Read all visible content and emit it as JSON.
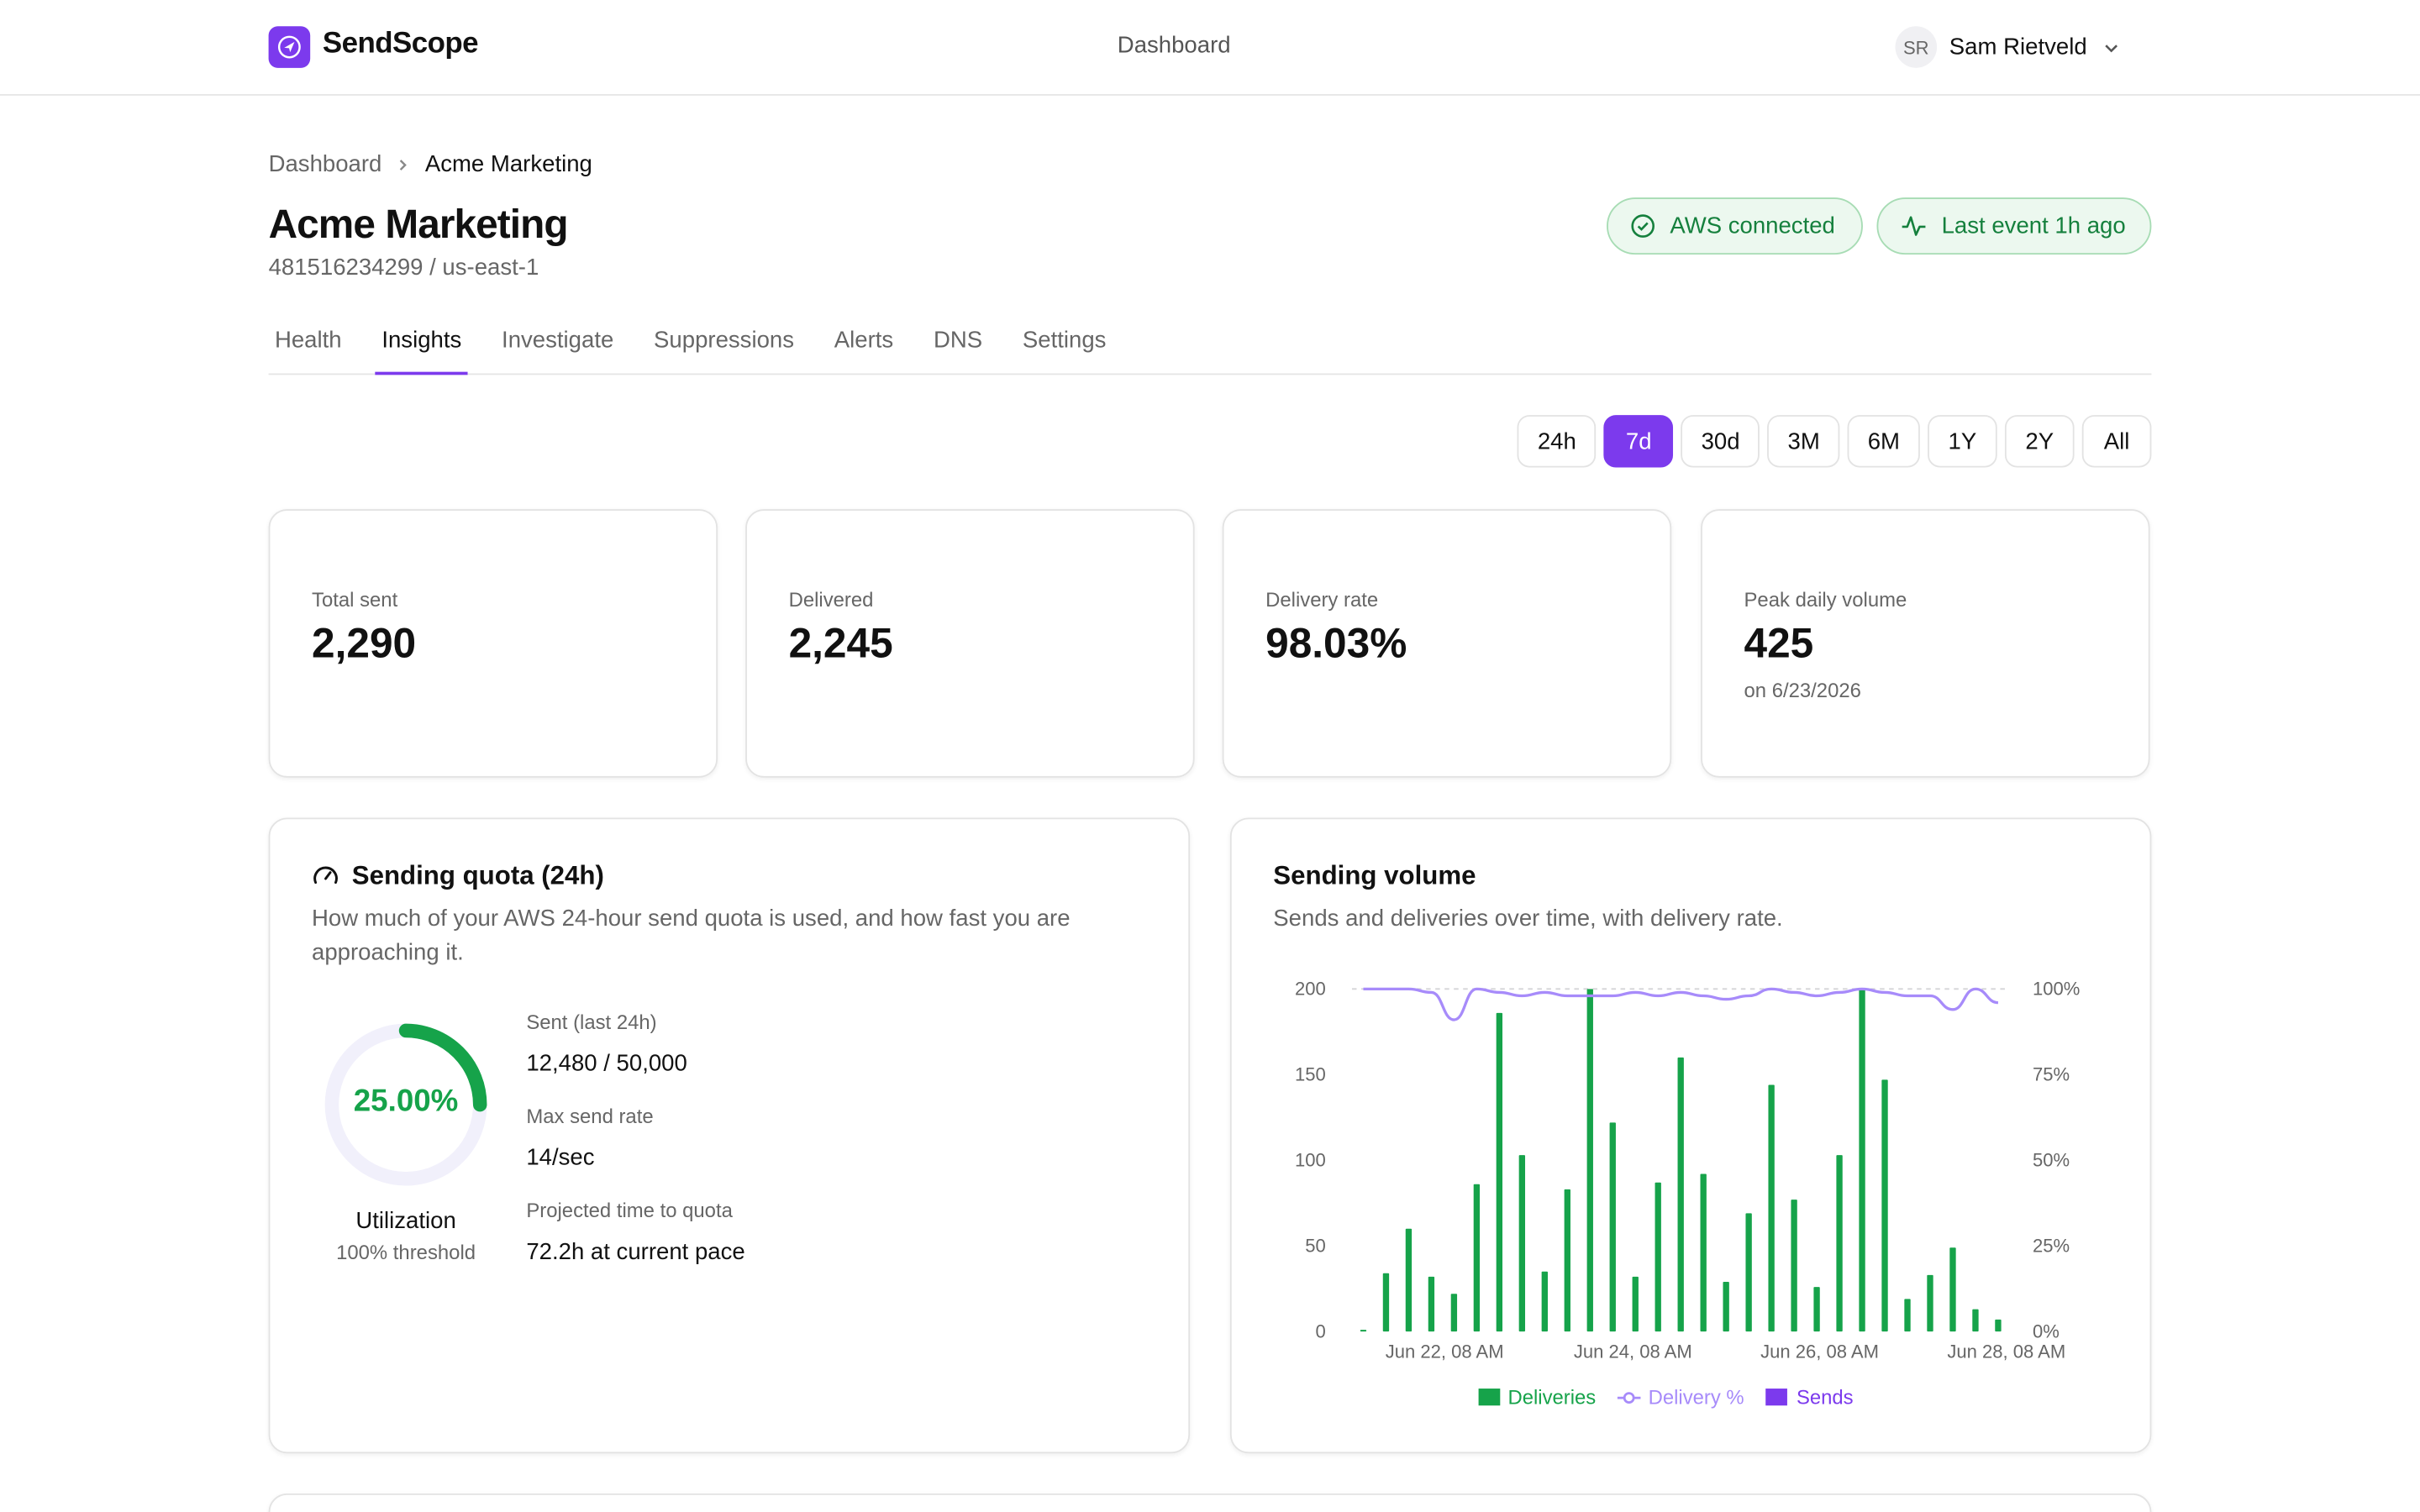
{
  "app": {
    "brand": "SendScope",
    "top_center": "Dashboard"
  },
  "user": {
    "initials": "SR",
    "name": "Sam Rietveld"
  },
  "breadcrumb": {
    "root": "Dashboard",
    "current": "Acme Marketing"
  },
  "header": {
    "title": "Acme Marketing",
    "subtitle": "481516234299 / us-east-1"
  },
  "status": {
    "aws": "AWS connected",
    "last_event": "Last event 1h ago",
    "color": "#15803d"
  },
  "tabs": [
    "Health",
    "Insights",
    "Investigate",
    "Suppressions",
    "Alerts",
    "DNS",
    "Settings"
  ],
  "active_tab": "Insights",
  "ranges": [
    "24h",
    "7d",
    "30d",
    "3M",
    "6M",
    "1Y",
    "2Y",
    "All"
  ],
  "active_range": "7d",
  "stats": [
    {
      "label": "Total sent",
      "value": "2,290",
      "sub": ""
    },
    {
      "label": "Delivered",
      "value": "2,245",
      "sub": ""
    },
    {
      "label": "Delivery rate",
      "value": "98.03%",
      "sub": ""
    },
    {
      "label": "Peak daily volume",
      "value": "425",
      "sub": "on 6/23/2026"
    }
  ],
  "quota": {
    "title": "Sending quota (24h)",
    "description": "How much of your AWS 24-hour send quota is used, and how fast you are approaching it.",
    "utilization_text": "25.00%",
    "utilization_fraction": 0.25,
    "utilization_label": "Utilization",
    "threshold": "100% threshold",
    "rows": [
      {
        "label": "Sent (last 24h)",
        "value": "12,480 / 50,000"
      },
      {
        "label": "Max send rate",
        "value": "14/sec"
      },
      {
        "label": "Projected time to quota",
        "value": "72.2h at current pace"
      }
    ]
  },
  "volume": {
    "title": "Sending volume",
    "description": "Sends and deliveries over time, with delivery rate."
  },
  "chart_data": {
    "type": "bar",
    "y_left": {
      "ticks": [
        "200",
        "150",
        "100",
        "50",
        "0"
      ],
      "range": [
        0,
        200
      ]
    },
    "y_right": {
      "ticks": [
        "100%",
        "75%",
        "50%",
        "25%",
        "0%"
      ],
      "range": [
        0,
        100
      ]
    },
    "x_tick_labels": [
      "Jun 22, 08 AM",
      "Jun 24, 08 AM",
      "Jun 26, 08 AM",
      "Jun 28, 08 AM"
    ],
    "legend": [
      "Deliveries",
      "Delivery %",
      "Sends"
    ],
    "colors": {
      "deliveries": "#16a34a",
      "delivery_pct": "#a78bfa",
      "sends": "#7c3aed"
    },
    "series": [
      {
        "name": "Deliveries",
        "values": [
          1,
          34,
          60,
          32,
          22,
          86,
          186,
          103,
          35,
          83,
          200,
          122,
          32,
          87,
          160,
          92,
          29,
          69,
          144,
          77,
          26,
          103,
          200,
          147,
          19,
          33,
          49,
          13,
          7
        ]
      },
      {
        "name": "Delivery %",
        "values": [
          100,
          100,
          100,
          99,
          91,
          100,
          99,
          98,
          99,
          98,
          98,
          98,
          99,
          98,
          99,
          98,
          97,
          98,
          100,
          99,
          98,
          99,
          100,
          99,
          98,
          98,
          94,
          100,
          96
        ]
      }
    ]
  }
}
